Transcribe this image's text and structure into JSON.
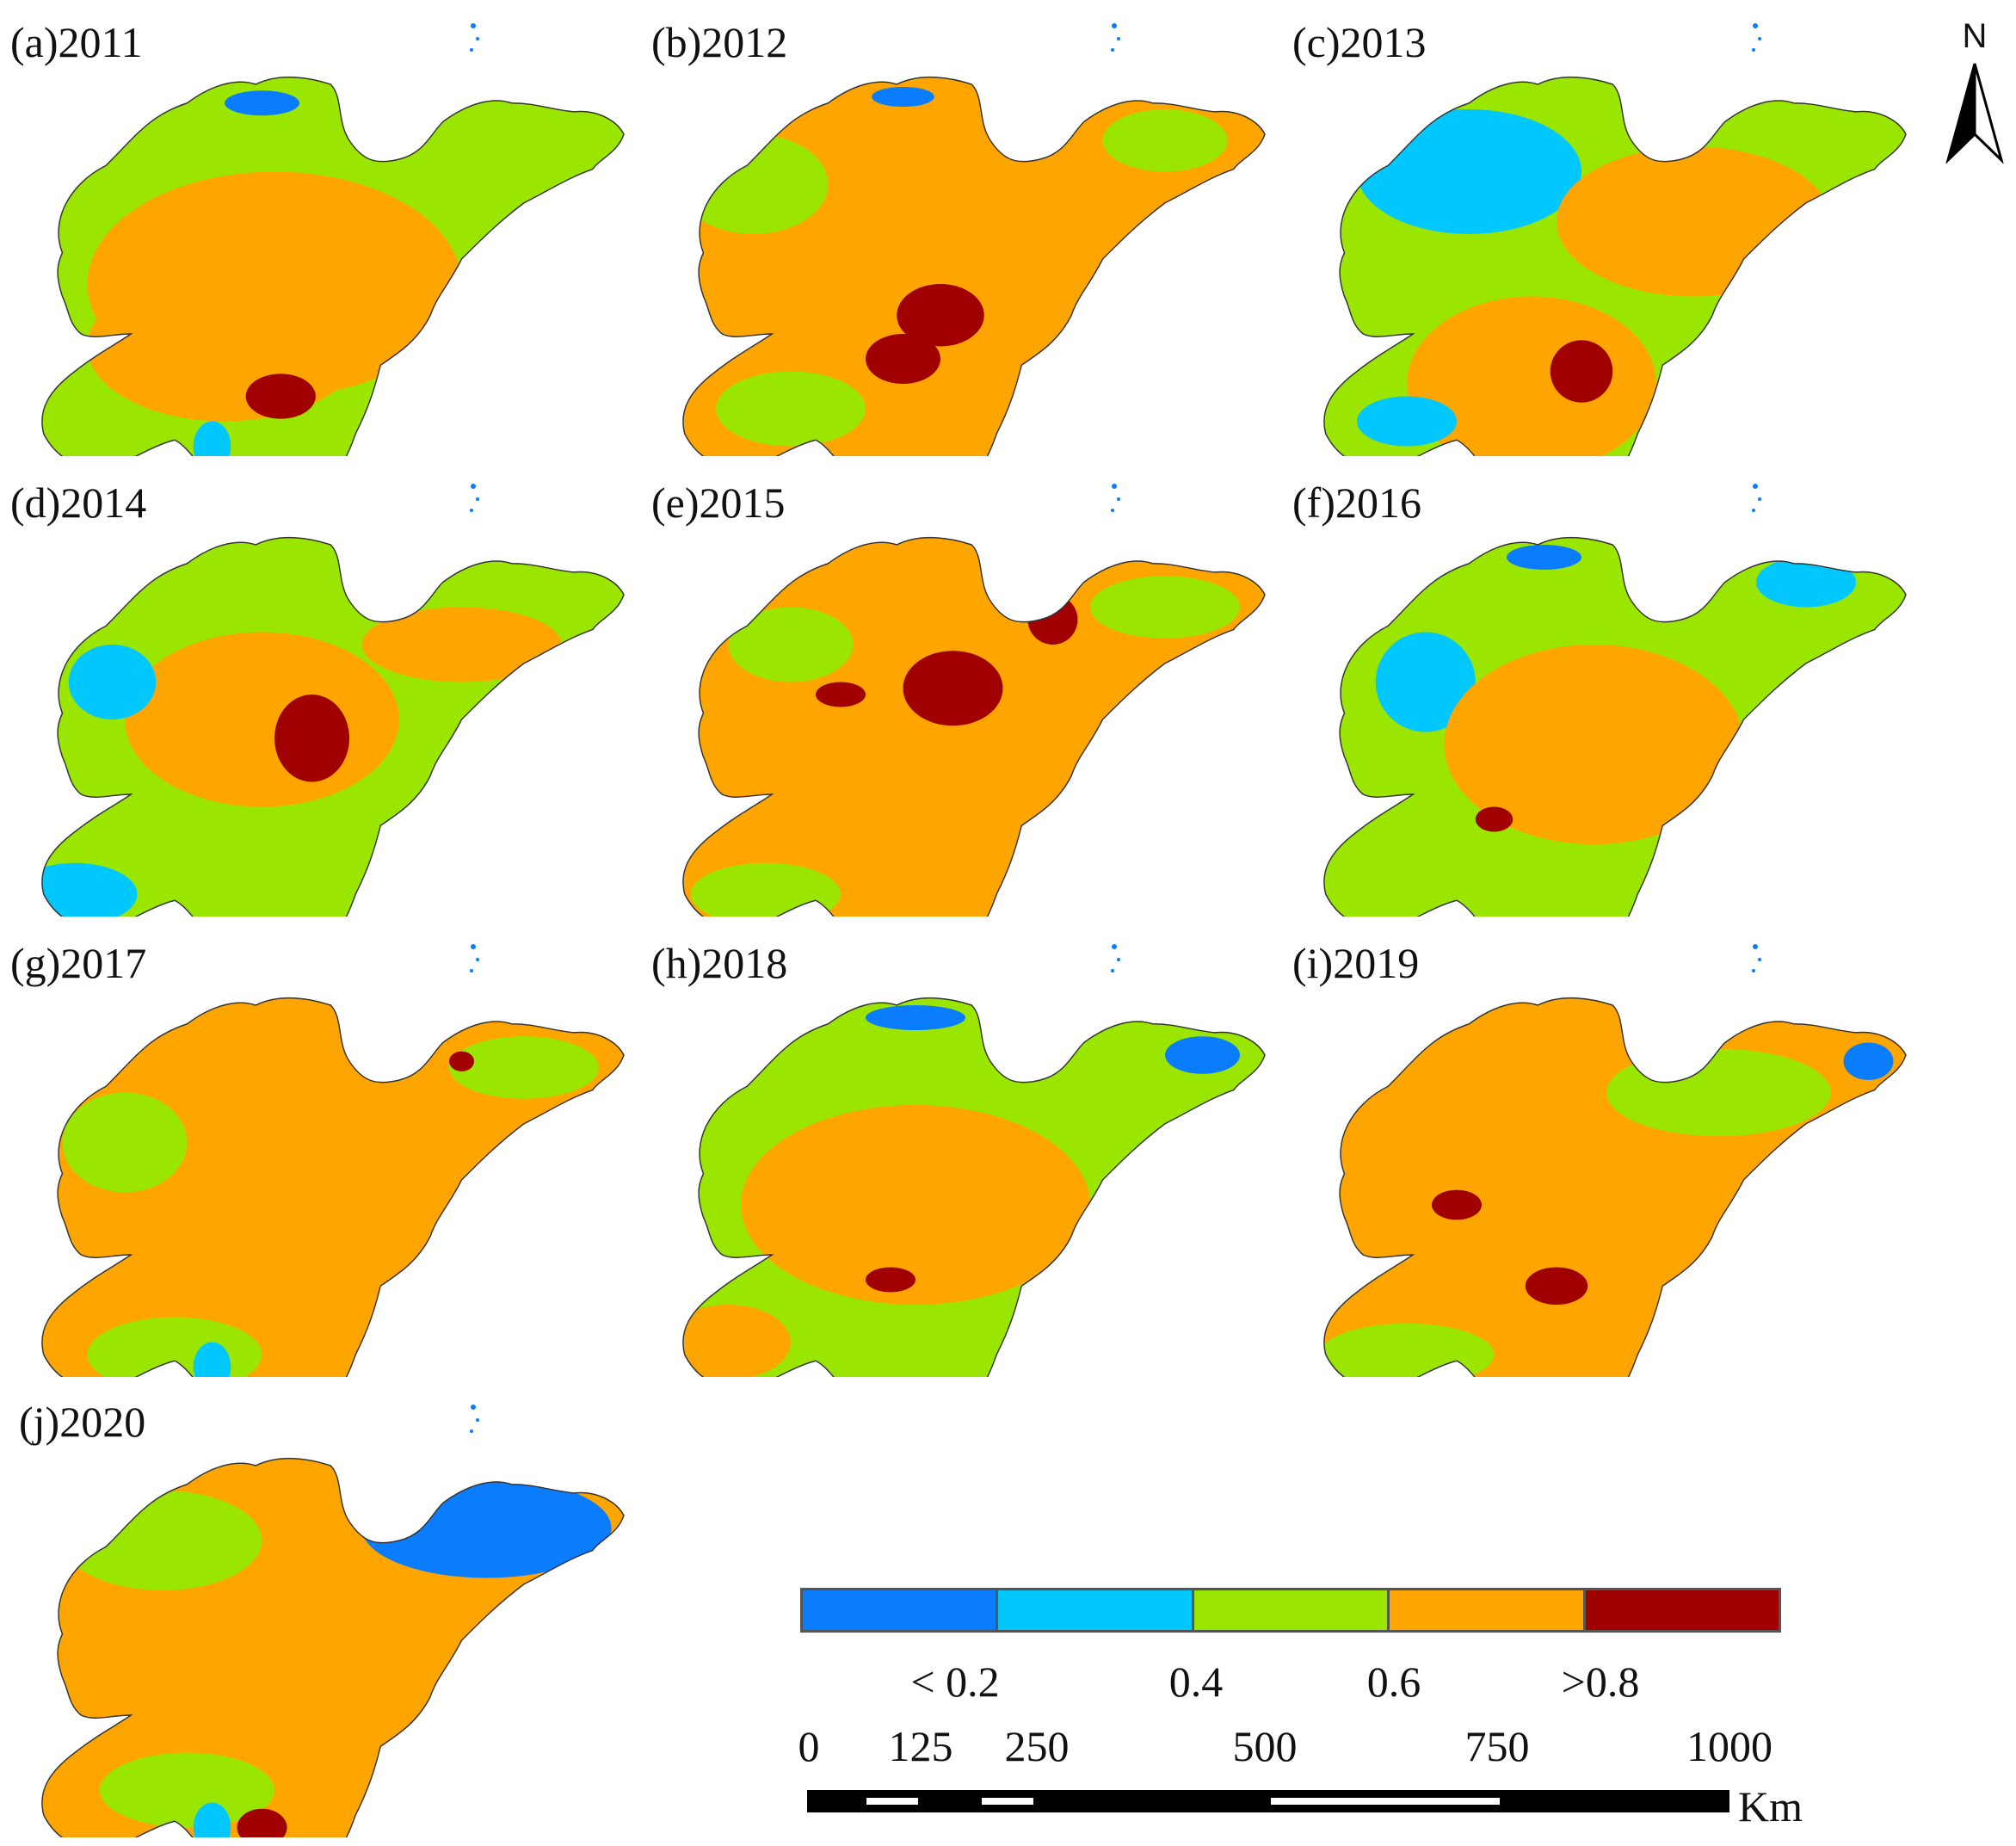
{
  "panels": [
    {
      "label": "(a)2011"
    },
    {
      "label": "(b)2012"
    },
    {
      "label": "(c)2013"
    },
    {
      "label": "(d)2014"
    },
    {
      "label": "(e)2015"
    },
    {
      "label": "(f)2016"
    },
    {
      "label": "(g)2017"
    },
    {
      "label": "(h)2018"
    },
    {
      "label": "(i)2019"
    },
    {
      "label": "(j)2020"
    }
  ],
  "north": {
    "label": "N"
  },
  "legend": {
    "colors": [
      "#0a7dff",
      "#00c8ff",
      "#9be600",
      "#ffa500",
      "#a00000"
    ],
    "labels": [
      "< 0.2",
      "0.4",
      "0.6",
      ">0.8"
    ]
  },
  "scale": {
    "ticks": [
      "0",
      "125",
      "250",
      "500",
      "750",
      "1000"
    ],
    "unit": "Km"
  },
  "colors": {
    "low": "#0a7dff",
    "low_mid": "#00c8ff",
    "mid": "#9be600",
    "high": "#ffa500",
    "very_high": "#a00000",
    "outline": "#333333"
  }
}
